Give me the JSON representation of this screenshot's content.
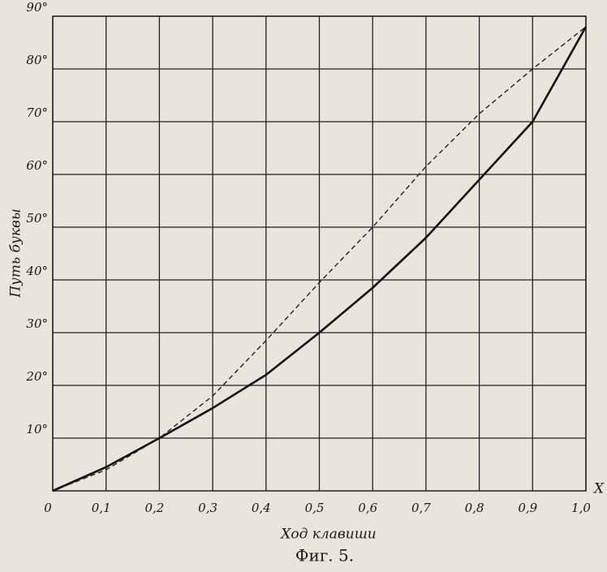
{
  "chart_data": {
    "type": "line",
    "title": "Фиг. 5.",
    "x_label": "Ход клавиши",
    "y_label": "Путь буквы",
    "axis_annotation": "X",
    "x": [
      0,
      0.1,
      0.2,
      0.3,
      0.4,
      0.5,
      0.6,
      0.7,
      0.8,
      0.9,
      1.0
    ],
    "series": [
      {
        "color": "#111111",
        "dash": false,
        "values": [
          0,
          4.5,
          10,
          15.7,
          22,
          30,
          38.5,
          48,
          59,
          70,
          88
        ]
      },
      {
        "color": "#222222",
        "dash": true,
        "values": [
          0,
          4,
          10,
          18,
          28.5,
          39.5,
          50,
          61.5,
          71.5,
          80,
          88
        ]
      }
    ],
    "xlim": [
      0,
      1.0
    ],
    "ylim": [
      0,
      90
    ],
    "xticks": [
      0,
      {
        "value": 0.1,
        "label": "0,1"
      },
      {
        "value": 0.2,
        "label": "0,2"
      },
      {
        "value": 0.3,
        "label": "0,3"
      },
      {
        "value": 0.4,
        "label": "0,4"
      },
      {
        "value": 0.5,
        "label": "0,5"
      },
      {
        "value": 0.6,
        "label": "0,6"
      },
      {
        "value": 0.7,
        "label": "0,7"
      },
      {
        "value": 0.8,
        "label": "0,8"
      },
      {
        "value": 0.9,
        "label": "0,9"
      },
      {
        "value": 1.0,
        "label": "1,0"
      }
    ],
    "yticks": [
      {
        "value": 10,
        "label": "10°"
      },
      {
        "value": 20,
        "label": "20°"
      },
      {
        "value": 30,
        "label": "30°"
      },
      {
        "value": 40,
        "label": "40°"
      },
      {
        "value": 50,
        "label": "50°"
      },
      {
        "value": 60,
        "label": "60°"
      },
      {
        "value": 70,
        "label": "70°"
      },
      {
        "value": 80,
        "label": "80°"
      },
      {
        "value": 90,
        "label": "90°"
      }
    ],
    "grid": true
  }
}
